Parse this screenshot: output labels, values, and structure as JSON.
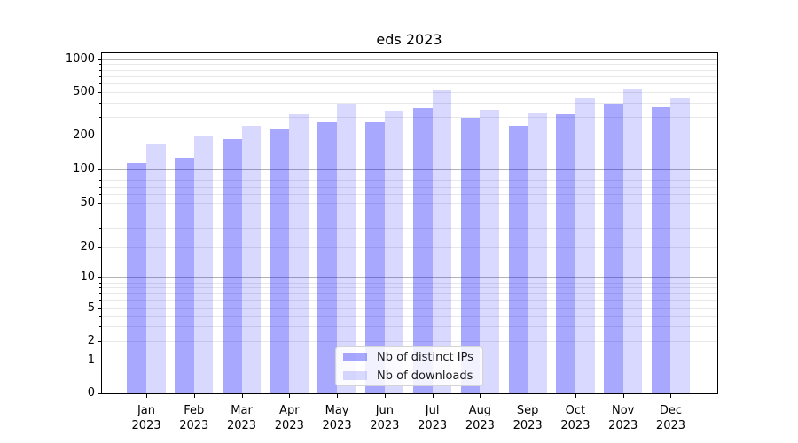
{
  "title": "eds 2023",
  "chart_data": {
    "type": "bar",
    "title": "eds 2023",
    "xlabel": "",
    "ylabel": "",
    "yscale": "symlog",
    "ylim": [
      0,
      1000
    ],
    "y_ticks": [
      0,
      1,
      2,
      5,
      10,
      20,
      50,
      100,
      200,
      500,
      1000
    ],
    "y_major_gridlines": [
      1,
      10,
      100,
      1000
    ],
    "grid": true,
    "legend_position": "lower center",
    "categories": [
      "Jan 2023",
      "Feb 2023",
      "Mar 2023",
      "Apr 2023",
      "May 2023",
      "Jun 2023",
      "Jul 2023",
      "Aug 2023",
      "Sep 2023",
      "Oct 2023",
      "Nov 2023",
      "Dec 2023"
    ],
    "month_line1": [
      "Jan",
      "Feb",
      "Mar",
      "Apr",
      "May",
      "Jun",
      "Jul",
      "Aug",
      "Sep",
      "Oct",
      "Nov",
      "Dec"
    ],
    "month_line2": "2023",
    "series": [
      {
        "name": "Nb of distinct IPs",
        "color": "rgba(0,0,255,0.34)",
        "values": [
          114,
          126,
          188,
          231,
          265,
          265,
          361,
          293,
          248,
          315,
          396,
          366
        ]
      },
      {
        "name": "Nb of downloads",
        "color": "rgba(0,0,255,0.15)",
        "values": [
          168,
          203,
          248,
          313,
          395,
          340,
          520,
          346,
          319,
          443,
          532,
          443
        ]
      }
    ],
    "colors": {
      "background": "#ffffff",
      "grid_major": "#b3b3b3",
      "grid_minor": "#e8e8e8",
      "spine": "#000000",
      "text": "#000000"
    }
  }
}
